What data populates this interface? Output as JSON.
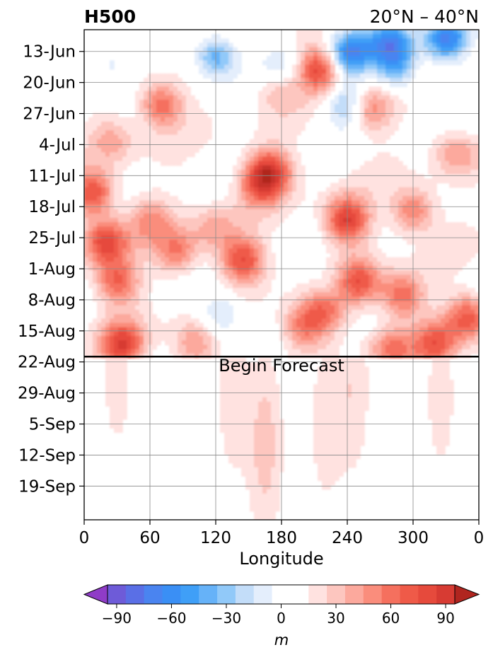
{
  "chart_data": {
    "type": "heatmap",
    "title_left": "H500",
    "title_right": "20°N – 40°N",
    "xlabel": "Longitude",
    "ylabel": "",
    "x_ticks": [
      "0",
      "60",
      "120",
      "180",
      "240",
      "300",
      "0"
    ],
    "x_tick_values": [
      0,
      60,
      120,
      180,
      240,
      300,
      360
    ],
    "xlim": [
      0,
      360
    ],
    "y_ticks": [
      "13-Jun",
      "20-Jun",
      "27-Jun",
      "4-Jul",
      "11-Jul",
      "18-Jul",
      "25-Jul",
      "1-Aug",
      "8-Aug",
      "15-Aug",
      "22-Aug",
      "29-Aug",
      "5-Sep",
      "12-Sep",
      "19-Sep"
    ],
    "y_tick_days": [
      0,
      7,
      14,
      21,
      28,
      35,
      42,
      49,
      56,
      63,
      70,
      77,
      84,
      91,
      98
    ],
    "ylim_days": [
      -4.9,
      105.6
    ],
    "forecast_start_day": 68.8,
    "annotation": "Begin Forecast",
    "grid": true,
    "colorbar": {
      "label": "m",
      "ticks": [
        "−90",
        "−60",
        "−30",
        "0",
        "30",
        "60",
        "90"
      ],
      "tick_values": [
        -90,
        -60,
        -30,
        0,
        30,
        60,
        90
      ],
      "levels": [
        -105,
        -95,
        -85,
        -75,
        -65,
        -55,
        -45,
        -35,
        -25,
        -15,
        -5,
        5,
        15,
        25,
        35,
        45,
        55,
        65,
        75,
        85,
        95,
        105
      ],
      "colors": [
        "#8a3fc9",
        "#6e5bd8",
        "#5a6fe6",
        "#4a84f0",
        "#3a8ff5",
        "#3f9ff7",
        "#66b2f8",
        "#91c9f9",
        "#c3ddf9",
        "#e4eefc",
        "#ffffff",
        "#ffffff",
        "#ffe2e0",
        "#fdc6bf",
        "#fca99d",
        "#fa8d7c",
        "#f5705e",
        "#ef5a48",
        "#e64a3c",
        "#d73b33",
        "#c5302c"
      ],
      "extend_low_color": "#8f3cc7",
      "extend_high_color": "#b0251f"
    },
    "features": [
      {
        "lon": 8,
        "day": 32,
        "value": 65
      },
      {
        "lon": 20,
        "day": 43,
        "value": 70
      },
      {
        "lon": 30,
        "day": 52,
        "value": 55
      },
      {
        "lon": 35,
        "day": 66,
        "value": 70
      },
      {
        "lon": 70,
        "day": 12,
        "value": 55
      },
      {
        "lon": 85,
        "day": 45,
        "value": 45
      },
      {
        "lon": 145,
        "day": 47,
        "value": 65
      },
      {
        "lon": 160,
        "day": 30,
        "value": 50
      },
      {
        "lon": 170,
        "day": 27,
        "value": 65
      },
      {
        "lon": 200,
        "day": 62,
        "value": 45
      },
      {
        "lon": 215,
        "day": 4,
        "value": 75
      },
      {
        "lon": 220,
        "day": 58,
        "value": 50
      },
      {
        "lon": 240,
        "day": 38,
        "value": 75
      },
      {
        "lon": 250,
        "day": 52,
        "value": 60
      },
      {
        "lon": 260,
        "day": 13,
        "value": 45
      },
      {
        "lon": 290,
        "day": 55,
        "value": 55
      },
      {
        "lon": 300,
        "day": 36,
        "value": 50
      },
      {
        "lon": 340,
        "day": 22,
        "value": 45
      },
      {
        "lon": 350,
        "day": 60,
        "value": 60
      },
      {
        "lon": 320,
        "day": 66,
        "value": 55
      },
      {
        "lon": 60,
        "day": 38,
        "value": 35
      },
      {
        "lon": 120,
        "day": 40,
        "value": 30
      },
      {
        "lon": 100,
        "day": 66,
        "value": 35
      },
      {
        "lon": 178,
        "day": 8,
        "value": 30
      },
      {
        "lon": 280,
        "day": 67,
        "value": 45
      },
      {
        "lon": 25,
        "day": 20,
        "value": 30
      },
      {
        "lon": 235,
        "day": 1,
        "value": -30
      },
      {
        "lon": 120,
        "day": 1,
        "value": -55
      },
      {
        "lon": 180,
        "day": 4,
        "value": -30
      },
      {
        "lon": 240,
        "day": 12,
        "value": -45
      },
      {
        "lon": 245,
        "day": 0,
        "value": -50
      },
      {
        "lon": 280,
        "day": -2,
        "value": -70
      },
      {
        "lon": 285,
        "day": 4,
        "value": -45
      },
      {
        "lon": 330,
        "day": -3,
        "value": -75
      },
      {
        "lon": 125,
        "day": 59,
        "value": -35
      },
      {
        "lon": 225,
        "day": 54,
        "value": -20
      },
      {
        "lon": 25,
        "day": 3,
        "value": -25
      },
      {
        "lon": 345,
        "day": 20,
        "value": -20
      },
      {
        "lon": 165,
        "day": 89,
        "value": 25
      },
      {
        "lon": 245,
        "day": 76,
        "value": 18
      },
      {
        "lon": 220,
        "day": 84,
        "value": 15
      },
      {
        "lon": 135,
        "day": 78,
        "value": 15
      },
      {
        "lon": 30,
        "day": 73,
        "value": 14
      },
      {
        "lon": 325,
        "day": 78,
        "value": 14
      }
    ],
    "background_positive": 20,
    "forecast_background": 6
  }
}
